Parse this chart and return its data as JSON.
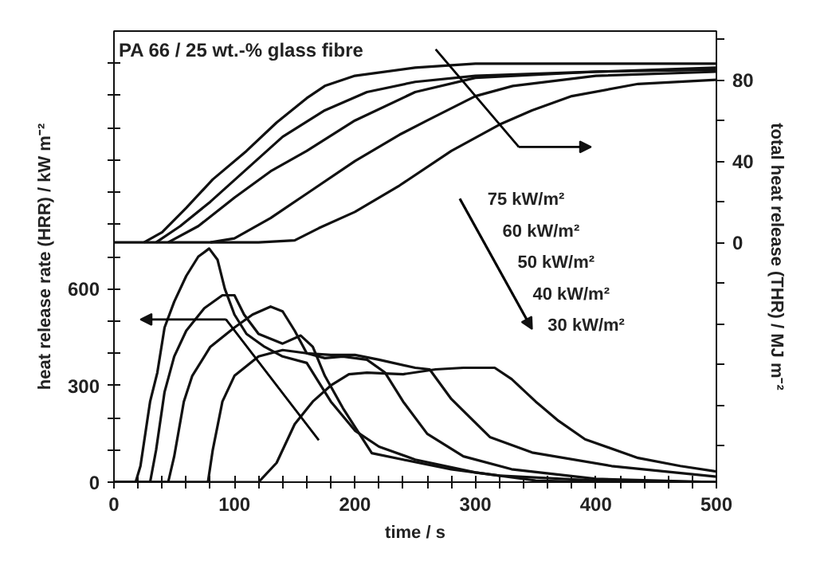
{
  "chart_data": {
    "type": "line",
    "title": "PA 66 / 25 wt.-% glass fibre",
    "xlabel": "time / s",
    "ylabel": "heat release rate (HRR) / kW m⁻²",
    "y2label": "total heat release (THR) / MJ m⁻²",
    "xlim": [
      0,
      500
    ],
    "xticks": [
      0,
      {
        "value": 20,
        "label": null
      },
      {
        "value": 40,
        "label": null
      },
      {
        "value": 60,
        "label": null
      },
      {
        "value": 80,
        "label": null
      },
      100,
      {
        "value": 120,
        "label": null
      },
      {
        "value": 140,
        "label": null
      },
      {
        "value": 160,
        "label": null
      },
      {
        "value": 180,
        "label": null
      },
      200,
      {
        "value": 220,
        "label": null
      },
      {
        "value": 240,
        "label": null
      },
      {
        "value": 260,
        "label": null
      },
      {
        "value": 280,
        "label": null
      },
      300,
      {
        "value": 320,
        "label": null
      },
      {
        "value": 340,
        "label": null
      },
      {
        "value": 360,
        "label": null
      },
      {
        "value": 380,
        "label": null
      },
      400,
      {
        "value": 420,
        "label": null
      },
      {
        "value": 440,
        "label": null
      },
      {
        "value": 460,
        "label": null
      },
      {
        "value": 480,
        "label": null
      },
      500
    ],
    "ylim": [
      0,
      1400
    ],
    "yticks": [
      0,
      {
        "value": 100,
        "label": null
      },
      {
        "value": 200,
        "label": null
      },
      300,
      {
        "value": 400,
        "label": null
      },
      {
        "value": 500,
        "label": null
      },
      600,
      {
        "value": 700,
        "label": null
      },
      {
        "value": 800,
        "label": null
      },
      {
        "value": 900,
        "label": null
      },
      {
        "value": 1000,
        "label": null
      },
      {
        "value": 1100,
        "label": null
      },
      {
        "value": 1200,
        "label": null
      },
      {
        "value": 1300,
        "label": null
      }
    ],
    "y2lim": [
      -118,
      104
    ],
    "y2ticks": [
      {
        "value": -100,
        "label": null
      },
      {
        "value": -80,
        "label": null
      },
      {
        "value": -60,
        "label": null
      },
      {
        "value": -40,
        "label": null
      },
      {
        "value": -20,
        "label": null
      },
      0,
      {
        "value": 20,
        "label": null
      },
      40,
      {
        "value": 60,
        "label": null
      },
      80,
      {
        "value": 100,
        "label": null
      }
    ],
    "annotations": [
      "75 kW/m²",
      "60 kW/m²",
      "50 kW/m²",
      "40 kW/m²",
      "30 kW/m²"
    ],
    "grid": false,
    "marker": "none",
    "line_style": "solid",
    "series": [
      {
        "color": "#111111",
        "x": [
          0,
          18,
          22,
          30,
          36,
          42,
          50,
          60,
          70,
          79,
          86,
          92,
          100,
          110,
          125,
          140,
          160,
          180,
          200,
          220,
          250,
          300,
          350,
          400,
          500
        ],
        "values": [
          0,
          0,
          50,
          250,
          340,
          480,
          560,
          640,
          700,
          725,
          690,
          600,
          520,
          460,
          420,
          390,
          370,
          250,
          160,
          110,
          70,
          30,
          5,
          0,
          0
        ]
      },
      {
        "color": "#111111",
        "x": [
          0,
          30,
          35,
          42,
          50,
          60,
          75,
          90,
          100,
          108,
          120,
          140,
          155,
          165,
          175,
          190,
          214,
          240,
          280,
          320,
          400,
          500
        ],
        "values": [
          0,
          0,
          100,
          280,
          390,
          470,
          540,
          580,
          580,
          520,
          460,
          430,
          455,
          420,
          330,
          230,
          90,
          70,
          40,
          20,
          5,
          0
        ]
      },
      {
        "color": "#111111",
        "x": [
          0,
          45,
          50,
          58,
          65,
          80,
          100,
          115,
          130,
          140,
          150,
          160,
          175,
          190,
          210,
          225,
          240,
          260,
          290,
          330,
          400,
          500
        ],
        "values": [
          0,
          0,
          80,
          250,
          330,
          420,
          480,
          520,
          545,
          530,
          470,
          400,
          385,
          390,
          380,
          340,
          250,
          150,
          80,
          40,
          10,
          0
        ]
      },
      {
        "color": "#111111",
        "x": [
          0,
          78,
          82,
          90,
          100,
          120,
          140,
          160,
          180,
          200,
          220,
          250,
          262,
          280,
          312,
          347,
          413,
          500
        ],
        "values": [
          0,
          0,
          100,
          250,
          330,
          390,
          410,
          400,
          395,
          395,
          380,
          355,
          350,
          258,
          140,
          92,
          50,
          17
        ]
      },
      {
        "color": "#111111",
        "x": [
          0,
          120,
          135,
          150,
          165,
          180,
          195,
          210,
          240,
          267,
          290,
          316,
          330,
          350,
          369,
          391,
          435,
          470,
          500
        ],
        "values": [
          0,
          0,
          60,
          180,
          250,
          300,
          335,
          340,
          335,
          350,
          355,
          355,
          320,
          250,
          190,
          133,
          75,
          50,
          33
        ]
      },
      {
        "color": "#111111",
        "axis": "y2",
        "x": [
          25,
          40,
          60,
          82,
          110,
          135,
          160,
          175,
          200,
          250,
          300,
          500
        ],
        "values": [
          0,
          5,
          17,
          31,
          45,
          59,
          71,
          77,
          82,
          86,
          88,
          88
        ]
      },
      {
        "color": "#111111",
        "axis": "y2",
        "x": [
          35,
          55,
          80,
          110,
          140,
          175,
          210,
          250,
          300,
          500
        ],
        "values": [
          0,
          8,
          20,
          36,
          52,
          65,
          74,
          79,
          82,
          86
        ]
      },
      {
        "color": "#111111",
        "axis": "y2",
        "x": [
          45,
          70,
          100,
          130,
          160,
          200,
          250,
          300,
          400,
          500
        ],
        "values": [
          0,
          8,
          22,
          35,
          45,
          60,
          74,
          81,
          84,
          85
        ]
      },
      {
        "color": "#111111",
        "axis": "y2",
        "x": [
          80,
          100,
          130,
          160,
          200,
          237,
          260,
          300,
          331,
          400,
          500
        ],
        "values": [
          0,
          2,
          12,
          24,
          40,
          53,
          60,
          72,
          77,
          82,
          84
        ]
      },
      {
        "color": "#111111",
        "axis": "y2",
        "x": [
          0,
          120,
          150,
          170,
          200,
          237,
          280,
          320,
          347,
          380,
          435,
          500
        ],
        "values": [
          0,
          0,
          1,
          7,
          15,
          28,
          45,
          58,
          65,
          72,
          78,
          80
        ]
      }
    ]
  }
}
